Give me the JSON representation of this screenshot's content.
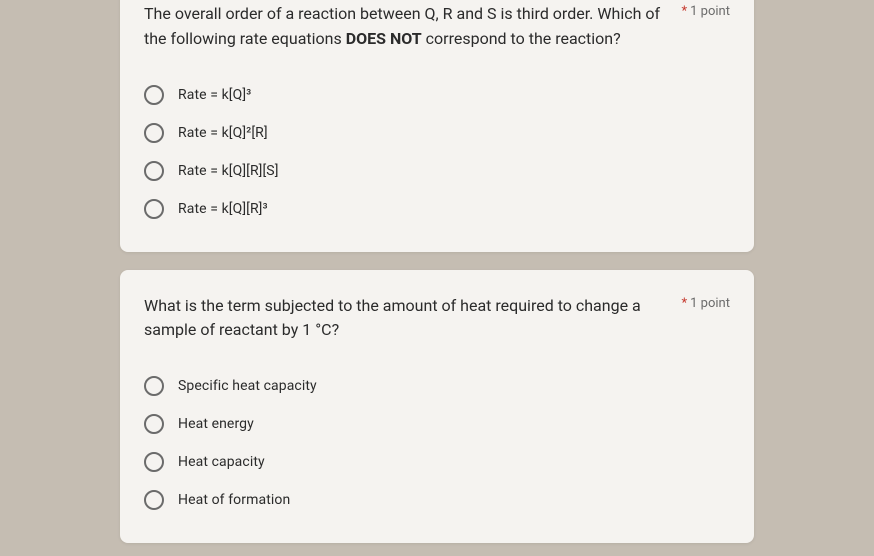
{
  "questions": [
    {
      "prompt_html": "The overall order of a reaction between Q, R and S is third order. Which of the following rate equations <b>DOES NOT</b> correspond to the reaction?",
      "points_label": "1 point",
      "required": true,
      "options": [
        {
          "html": "Rate = k[Q]³"
        },
        {
          "html": "Rate = k[Q]²[R]"
        },
        {
          "html": "Rate = k[Q][R][S]"
        },
        {
          "html": "Rate = k[Q][R]³"
        }
      ]
    },
    {
      "prompt_html": "What is the term subjected to the amount of heat required to change a sample of reactant by 1 °C?",
      "points_label": "1 point",
      "required": true,
      "options": [
        {
          "html": "Specific heat capacity"
        },
        {
          "html": "Heat energy"
        },
        {
          "html": "Heat capacity"
        },
        {
          "html": "Heat of formation"
        }
      ]
    }
  ],
  "colors": {
    "page_bg": "#c5bdb2",
    "card_bg": "#f5f3f0",
    "text": "#2b2b2b",
    "muted": "#6b6b6b",
    "required_asterisk": "#c5372c",
    "radio_border": "#6b6b6b"
  }
}
